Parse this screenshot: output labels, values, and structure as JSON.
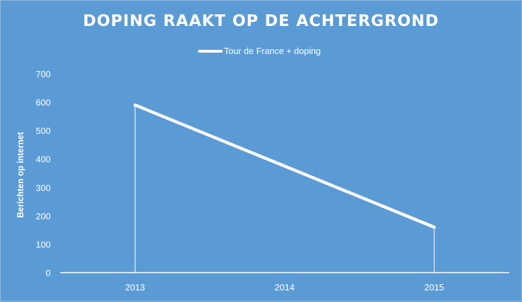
{
  "chart": {
    "title": "DOPING RAAKT OP DE ACHTERGROND",
    "legend_label": "Tour de France + doping",
    "ylabel": "Berichten op internet",
    "background": "#5B9BD5",
    "line_color": "#FFFFFF"
  },
  "chart_data": {
    "type": "line",
    "title": "DOPING RAAKT OP DE ACHTERGROND",
    "xlabel": "",
    "ylabel": "Berichten op internet",
    "categories": [
      "2013",
      "2014",
      "2015"
    ],
    "series": [
      {
        "name": "Tour de France + doping",
        "values": [
          590,
          null,
          160
        ]
      }
    ],
    "ylim": [
      0,
      700
    ],
    "yticks": [
      0,
      100,
      200,
      300,
      400,
      500,
      600,
      700
    ],
    "grid": false,
    "legend_position": "top",
    "drop_lines": true
  }
}
